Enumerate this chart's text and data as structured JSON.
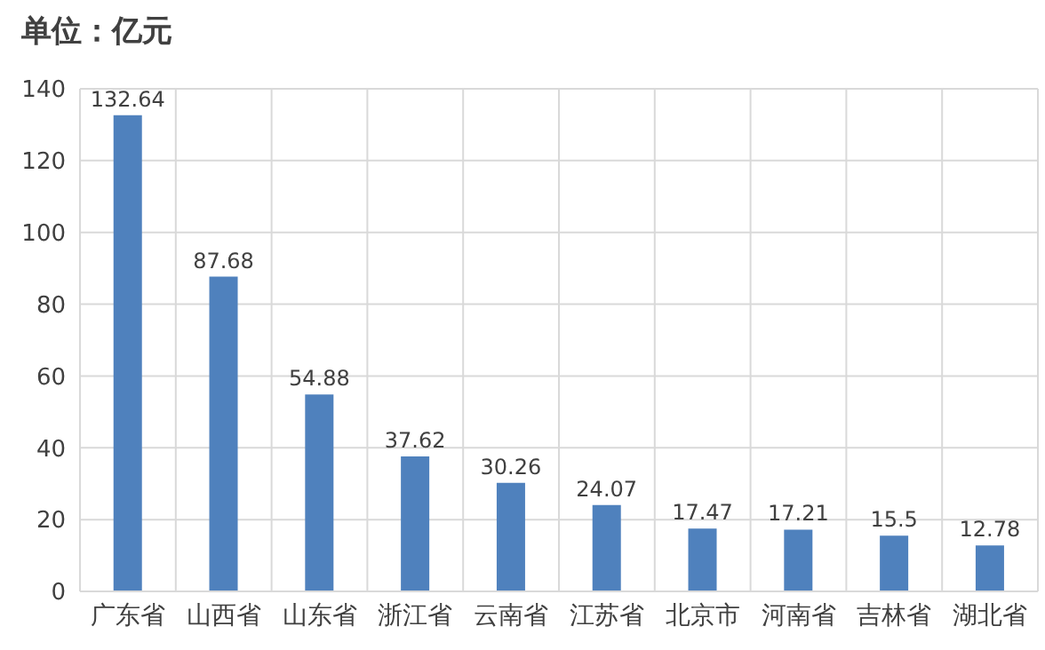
{
  "chart_data": {
    "type": "bar",
    "title": "单位：亿元",
    "categories": [
      "广东省",
      "山西省",
      "山东省",
      "浙江省",
      "云南省",
      "江苏省",
      "北京市",
      "河南省",
      "吉林省",
      "湖北省"
    ],
    "values": [
      132.64,
      87.68,
      54.88,
      37.62,
      30.26,
      24.07,
      17.47,
      17.21,
      15.5,
      12.78
    ],
    "color": "#4f81bd",
    "ylim": [
      0,
      140
    ],
    "yticks": [
      0,
      20,
      40,
      60,
      80,
      100,
      120,
      140
    ],
    "grid": true,
    "data_labels": true
  }
}
